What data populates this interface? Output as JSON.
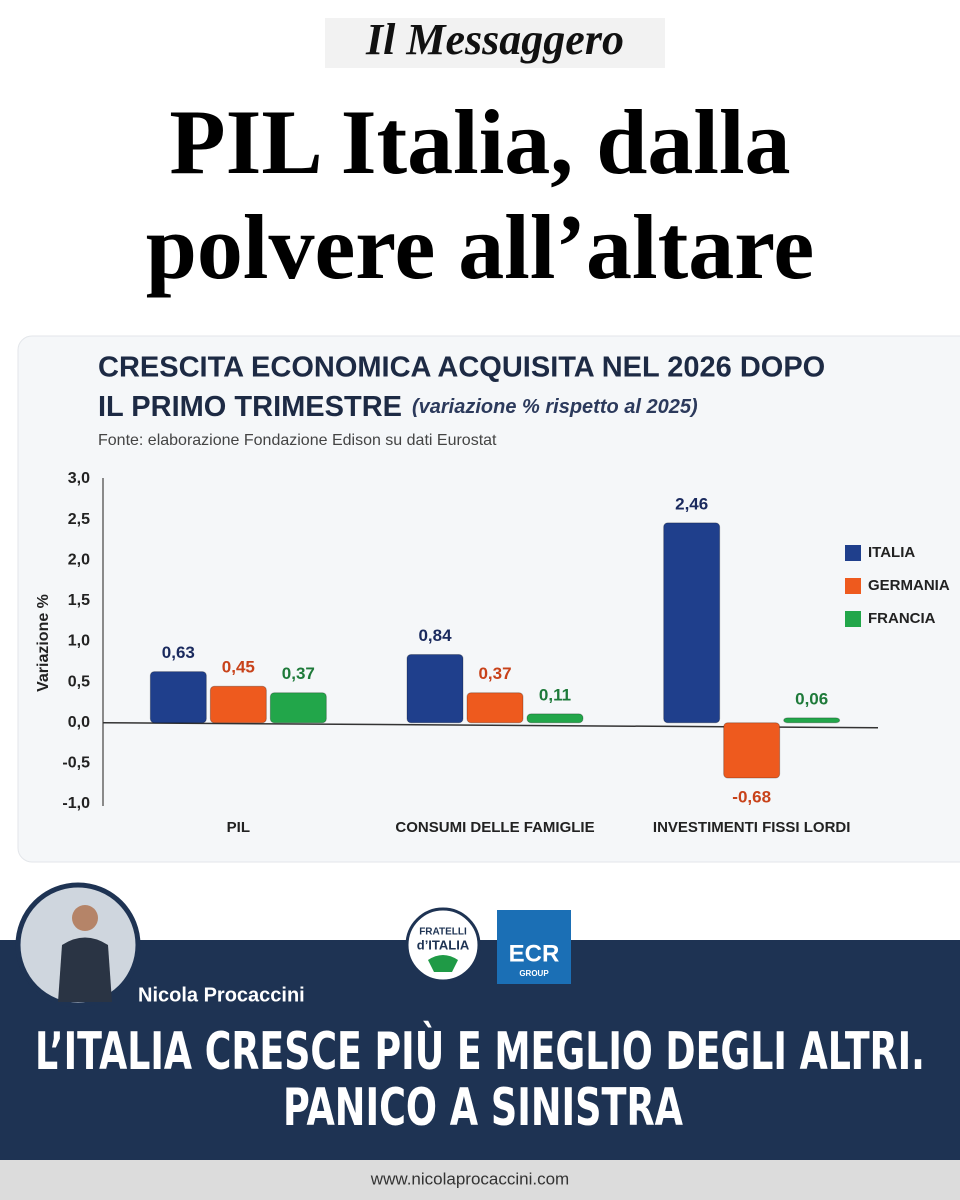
{
  "masthead": "Il Messaggero",
  "headline": [
    "PIL Italia, dalla",
    "polvere all’altare"
  ],
  "chart_data": {
    "type": "bar",
    "title": [
      "CRESCITA ECONOMICA ACQUISITA NEL 2026 DOPO",
      "IL PRIMO TRIMESTRE"
    ],
    "subtitle": "(variazione % rispetto al 2025)",
    "source": "Fonte: elaborazione Fondazione Edison su dati Eurostat",
    "y_label": "Variazione %",
    "categories": [
      "PIL",
      "CONSUMI DELLE FAMIGLIE",
      "INVESTIMENTI FISSI LORDI"
    ],
    "series": [
      {
        "name": "ITALIA",
        "color": "#1f3f8c",
        "label_color": "#1a2a5e",
        "values": [
          0.63,
          0.84,
          2.46
        ],
        "value_labels": [
          "0,63",
          "0,84",
          "2,46"
        ]
      },
      {
        "name": "GERMANIA",
        "color": "#ee5a1e",
        "label_color": "#c8421a",
        "values": [
          0.45,
          0.37,
          -0.68
        ],
        "value_labels": [
          "0,45",
          "0,37",
          "-0,68"
        ]
      },
      {
        "name": "FRANCIA",
        "color": "#22a64a",
        "label_color": "#1e7a3a",
        "values": [
          0.37,
          0.11,
          0.06
        ],
        "value_labels": [
          "0,37",
          "0,11",
          "0,06"
        ]
      }
    ],
    "ylim": [
      -1,
      3
    ],
    "yticks": [
      {
        "value": -1,
        "label": "-1,0"
      },
      {
        "value": -0.5,
        "label": "-0,5"
      },
      {
        "value": 0,
        "label": "0,0"
      },
      {
        "value": 0.5,
        "label": "0,5"
      },
      {
        "value": 1,
        "label": "1,0"
      },
      {
        "value": 1.5,
        "label": "1,5"
      },
      {
        "value": 2,
        "label": "2,0"
      },
      {
        "value": 2.5,
        "label": "2,5"
      },
      {
        "value": 3,
        "label": "3,0"
      }
    ],
    "grid": false,
    "legend": "right"
  },
  "footer": {
    "name": "Nicola Procaccini",
    "logos": [
      "FRATELLI",
      "d’ITALIA",
      "ECR",
      "GROUP"
    ],
    "slogan": [
      "L’ITALIA CRESCE PIÙ E MEGLIO DEGLI ALTRI.",
      "PANICO A SINISTRA"
    ],
    "website": "www.nicolaprocaccini.com"
  }
}
